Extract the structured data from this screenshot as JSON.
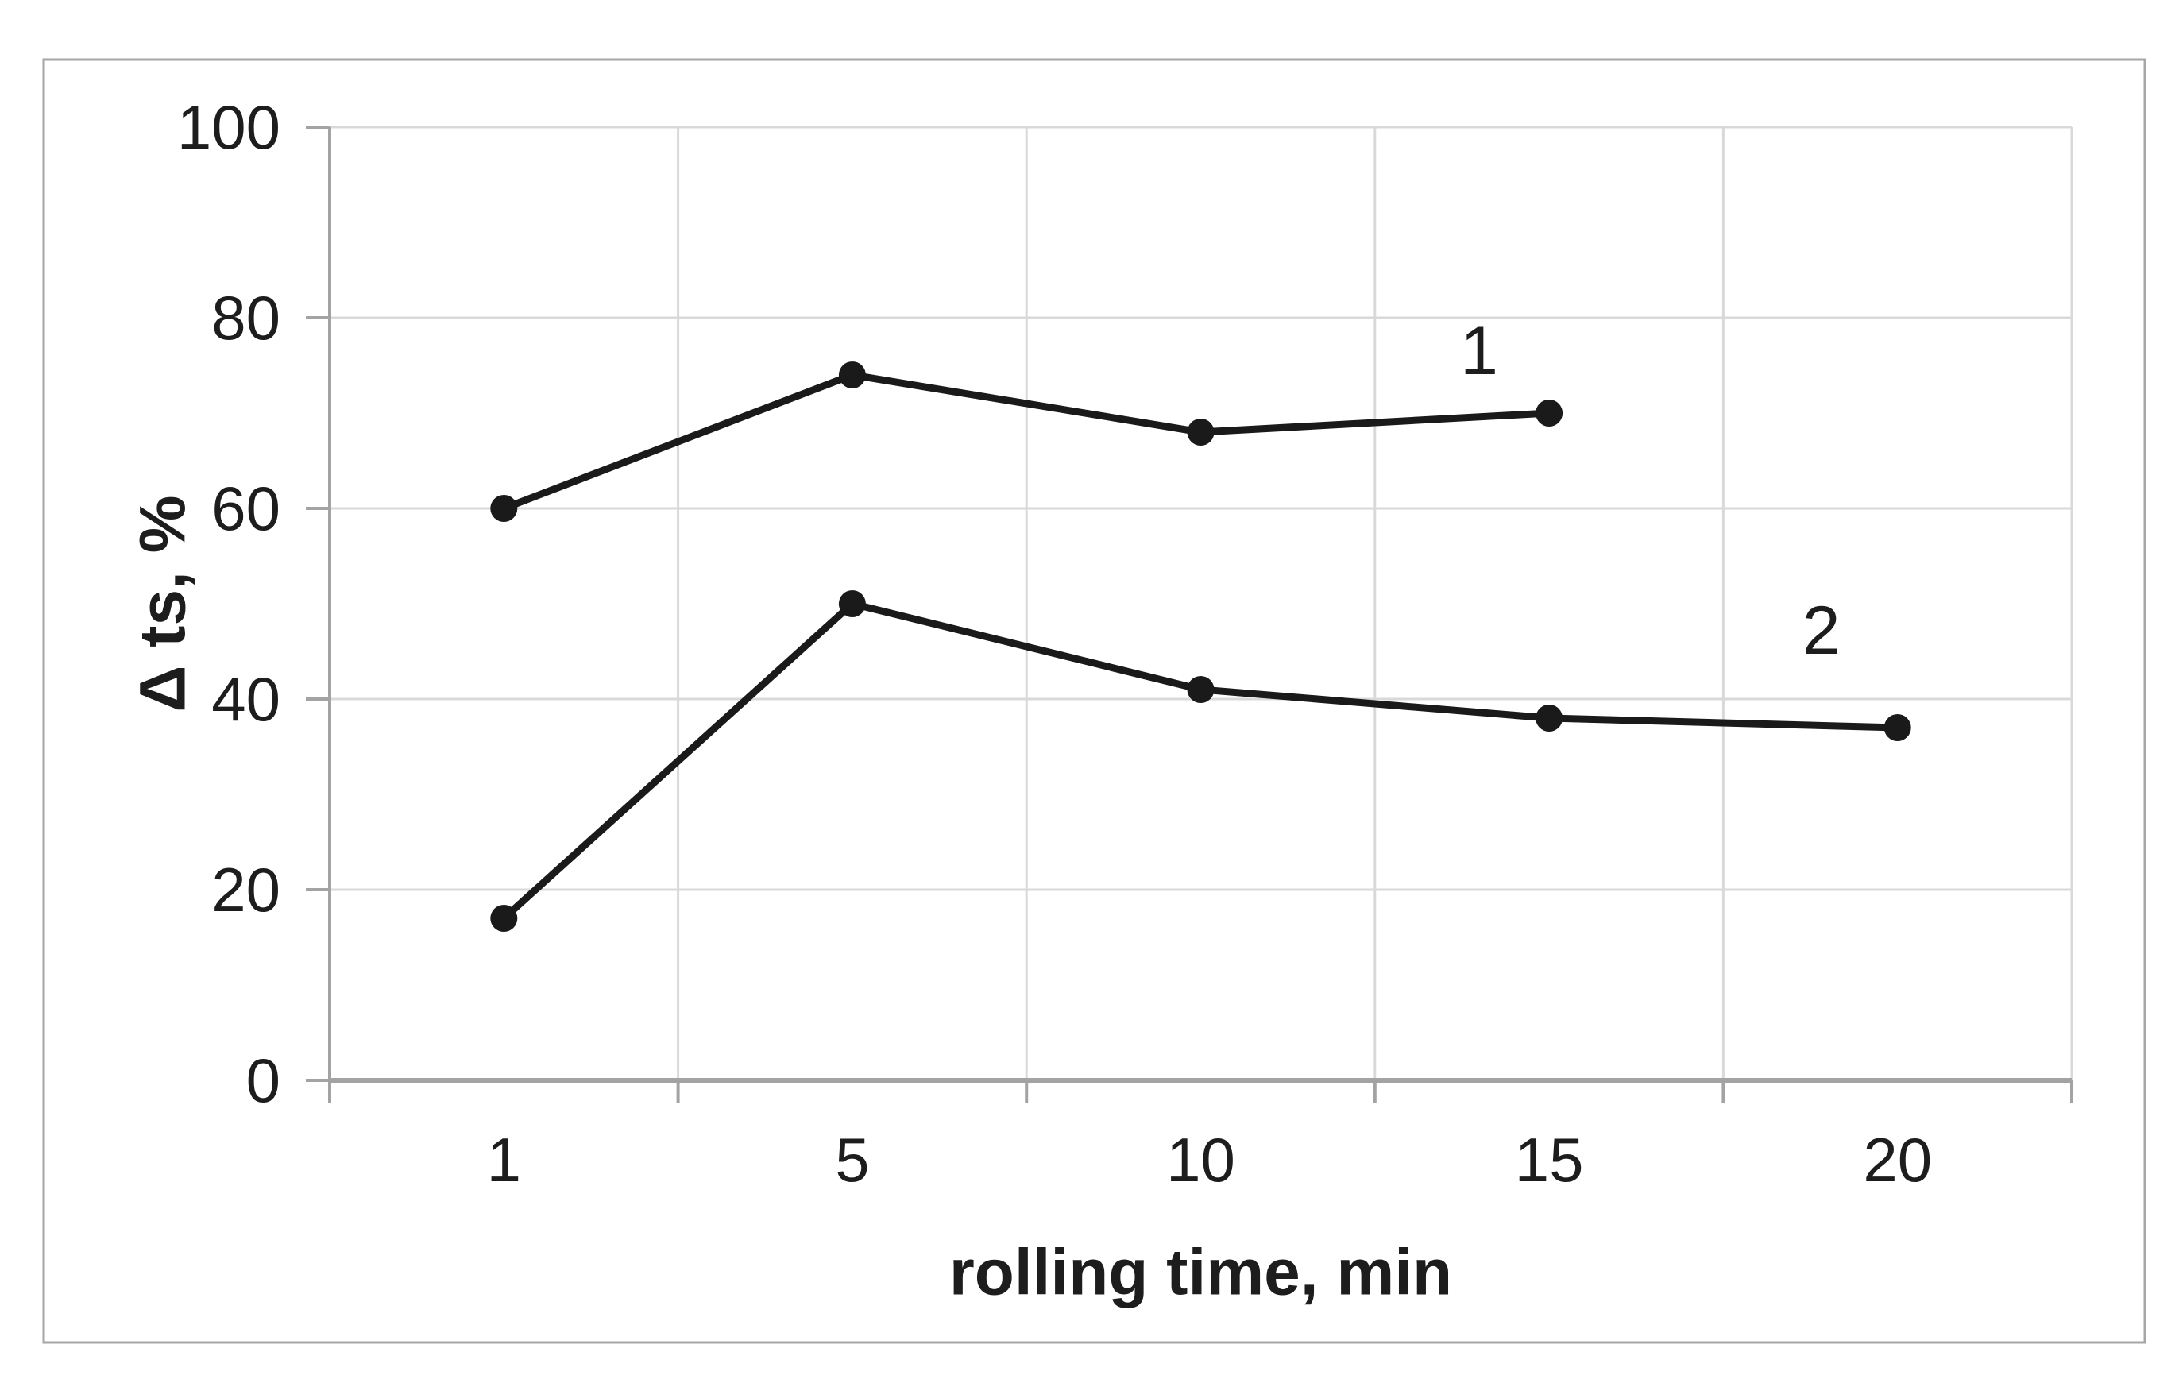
{
  "figure": {
    "background": "#ffffff",
    "border_color": "#a6a6a6"
  },
  "chart_data": {
    "type": "line",
    "title": "",
    "xlabel": "rolling time, min",
    "ylabel": "Δ ts, %",
    "x_tick_labels": [
      "1",
      "5",
      "10",
      "15",
      "20"
    ],
    "x": [
      1,
      5,
      10,
      15,
      20
    ],
    "y_ticks": [
      0,
      20,
      40,
      60,
      80,
      100
    ],
    "y_tick_labels": [
      "0",
      "20",
      "40",
      "60",
      "80",
      "100"
    ],
    "ylim": [
      0,
      100
    ],
    "grid": true,
    "legend_position": "inline-labels-near-last-point",
    "marker": "filled-circle",
    "series": [
      {
        "name": "1",
        "x": [
          1,
          5,
          10,
          15
        ],
        "values": [
          60,
          74,
          68,
          70
        ]
      },
      {
        "name": "2",
        "x": [
          1,
          5,
          10,
          15,
          20
        ],
        "values": [
          17,
          50,
          41,
          38,
          37
        ]
      }
    ],
    "colors": {
      "line": "#1a1a1a",
      "marker": "#1a1a1a",
      "gridline": "#d9d9d9",
      "axis": "#a3a3a3",
      "text": "#1d1d1d"
    }
  }
}
